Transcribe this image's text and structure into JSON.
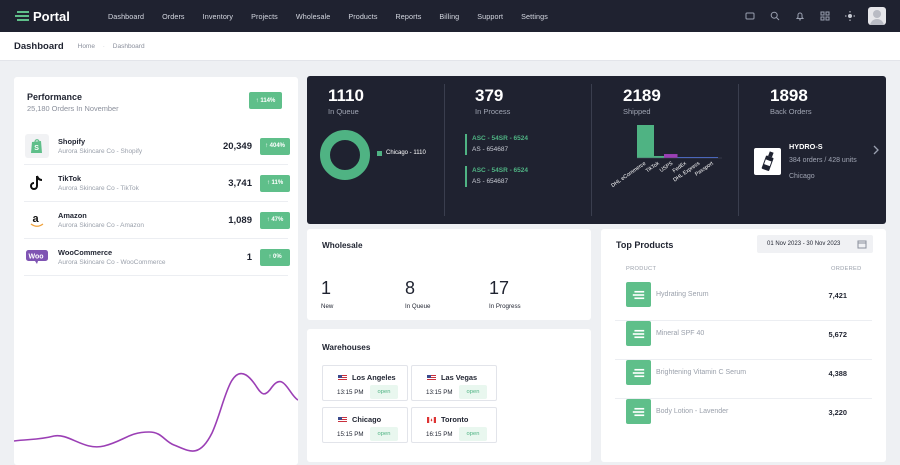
{
  "brand": {
    "name": "Portal"
  },
  "nav": [
    "Dashboard",
    "Orders",
    "Inventory",
    "Projects",
    "Wholesale",
    "Products",
    "Reports",
    "Billing",
    "Support",
    "Settings"
  ],
  "topbar_icons": [
    "message-icon",
    "search-icon",
    "bell-icon",
    "grid-icon",
    "sun-icon"
  ],
  "header": {
    "title": "Dashboard",
    "breadcrumb": [
      "Home",
      "Dashboard"
    ]
  },
  "performance": {
    "title": "Performance",
    "subtitle": "25,180 Orders In November",
    "change": "114%",
    "channels": [
      {
        "name": "Shopify",
        "company": "Aurora Skincare Co - Shopify",
        "value": "20,349",
        "change": "404%"
      },
      {
        "name": "TikTok",
        "company": "Aurora Skincare Co - TikTok",
        "value": "3,741",
        "change": "11%"
      },
      {
        "name": "Amazon",
        "company": "Aurora Skincare Co - Amazon",
        "value": "1,089",
        "change": "47%"
      },
      {
        "name": "WooCommerce",
        "company": "Aurora Skincare Co - WooCommerce",
        "value": "1",
        "change": "0%"
      }
    ],
    "trend_color": "#9b3fb5"
  },
  "kpis": {
    "in_queue": {
      "value": "1110",
      "label": "In Queue",
      "legend": "Chicago - 1110"
    },
    "in_process": {
      "value": "379",
      "label": "In Process",
      "items": [
        {
          "code": "ASC - 54SR - 6524",
          "sub": "AS - 654687"
        },
        {
          "code": "ASC - 54SR - 6524",
          "sub": "AS - 654687"
        }
      ]
    },
    "shipped": {
      "value": "2189",
      "label": "Shipped",
      "carriers": [
        "DHL eCommerce",
        "TikTok",
        "USPS",
        "FedEx",
        "DHL Express",
        "Passport"
      ],
      "values": [
        100,
        6,
        12,
        3,
        2,
        1
      ]
    },
    "back_orders": {
      "value": "1898",
      "label": "Back Orders",
      "product": "HYDRO-S",
      "info": "384 orders / 428 units",
      "location": "Chicago"
    }
  },
  "wholesale": {
    "title": "Wholesale",
    "stats": [
      {
        "value": "1",
        "label": "New"
      },
      {
        "value": "8",
        "label": "In Queue"
      },
      {
        "value": "17",
        "label": "In Progress"
      }
    ]
  },
  "warehouses": {
    "title": "Warehouses",
    "items": [
      {
        "city": "Los Angeles",
        "time": "13:15 PM",
        "status": "open",
        "flag": "us"
      },
      {
        "city": "Las Vegas",
        "time": "13:15 PM",
        "status": "open",
        "flag": "us"
      },
      {
        "city": "Chicago",
        "time": "15:15 PM",
        "status": "open",
        "flag": "us"
      },
      {
        "city": "Toronto",
        "time": "16:15 PM",
        "status": "open",
        "flag": "ca"
      }
    ]
  },
  "top_products": {
    "title": "Top Products",
    "date_range": "01 Nov 2023 - 30 Nov 2023",
    "col_product": "PRODUCT",
    "col_ordered": "ORDERED",
    "items": [
      {
        "name": "Hydrating Serum",
        "ordered": "7,421"
      },
      {
        "name": "Mineral SPF 40",
        "ordered": "5,672"
      },
      {
        "name": "Brightening Vitamin C Serum",
        "ordered": "4,388"
      },
      {
        "name": "Body Lotion - Lavender",
        "ordered": "3,220"
      }
    ]
  },
  "colors": {
    "accent": "#5fbf8a",
    "dark": "#1f2230"
  }
}
